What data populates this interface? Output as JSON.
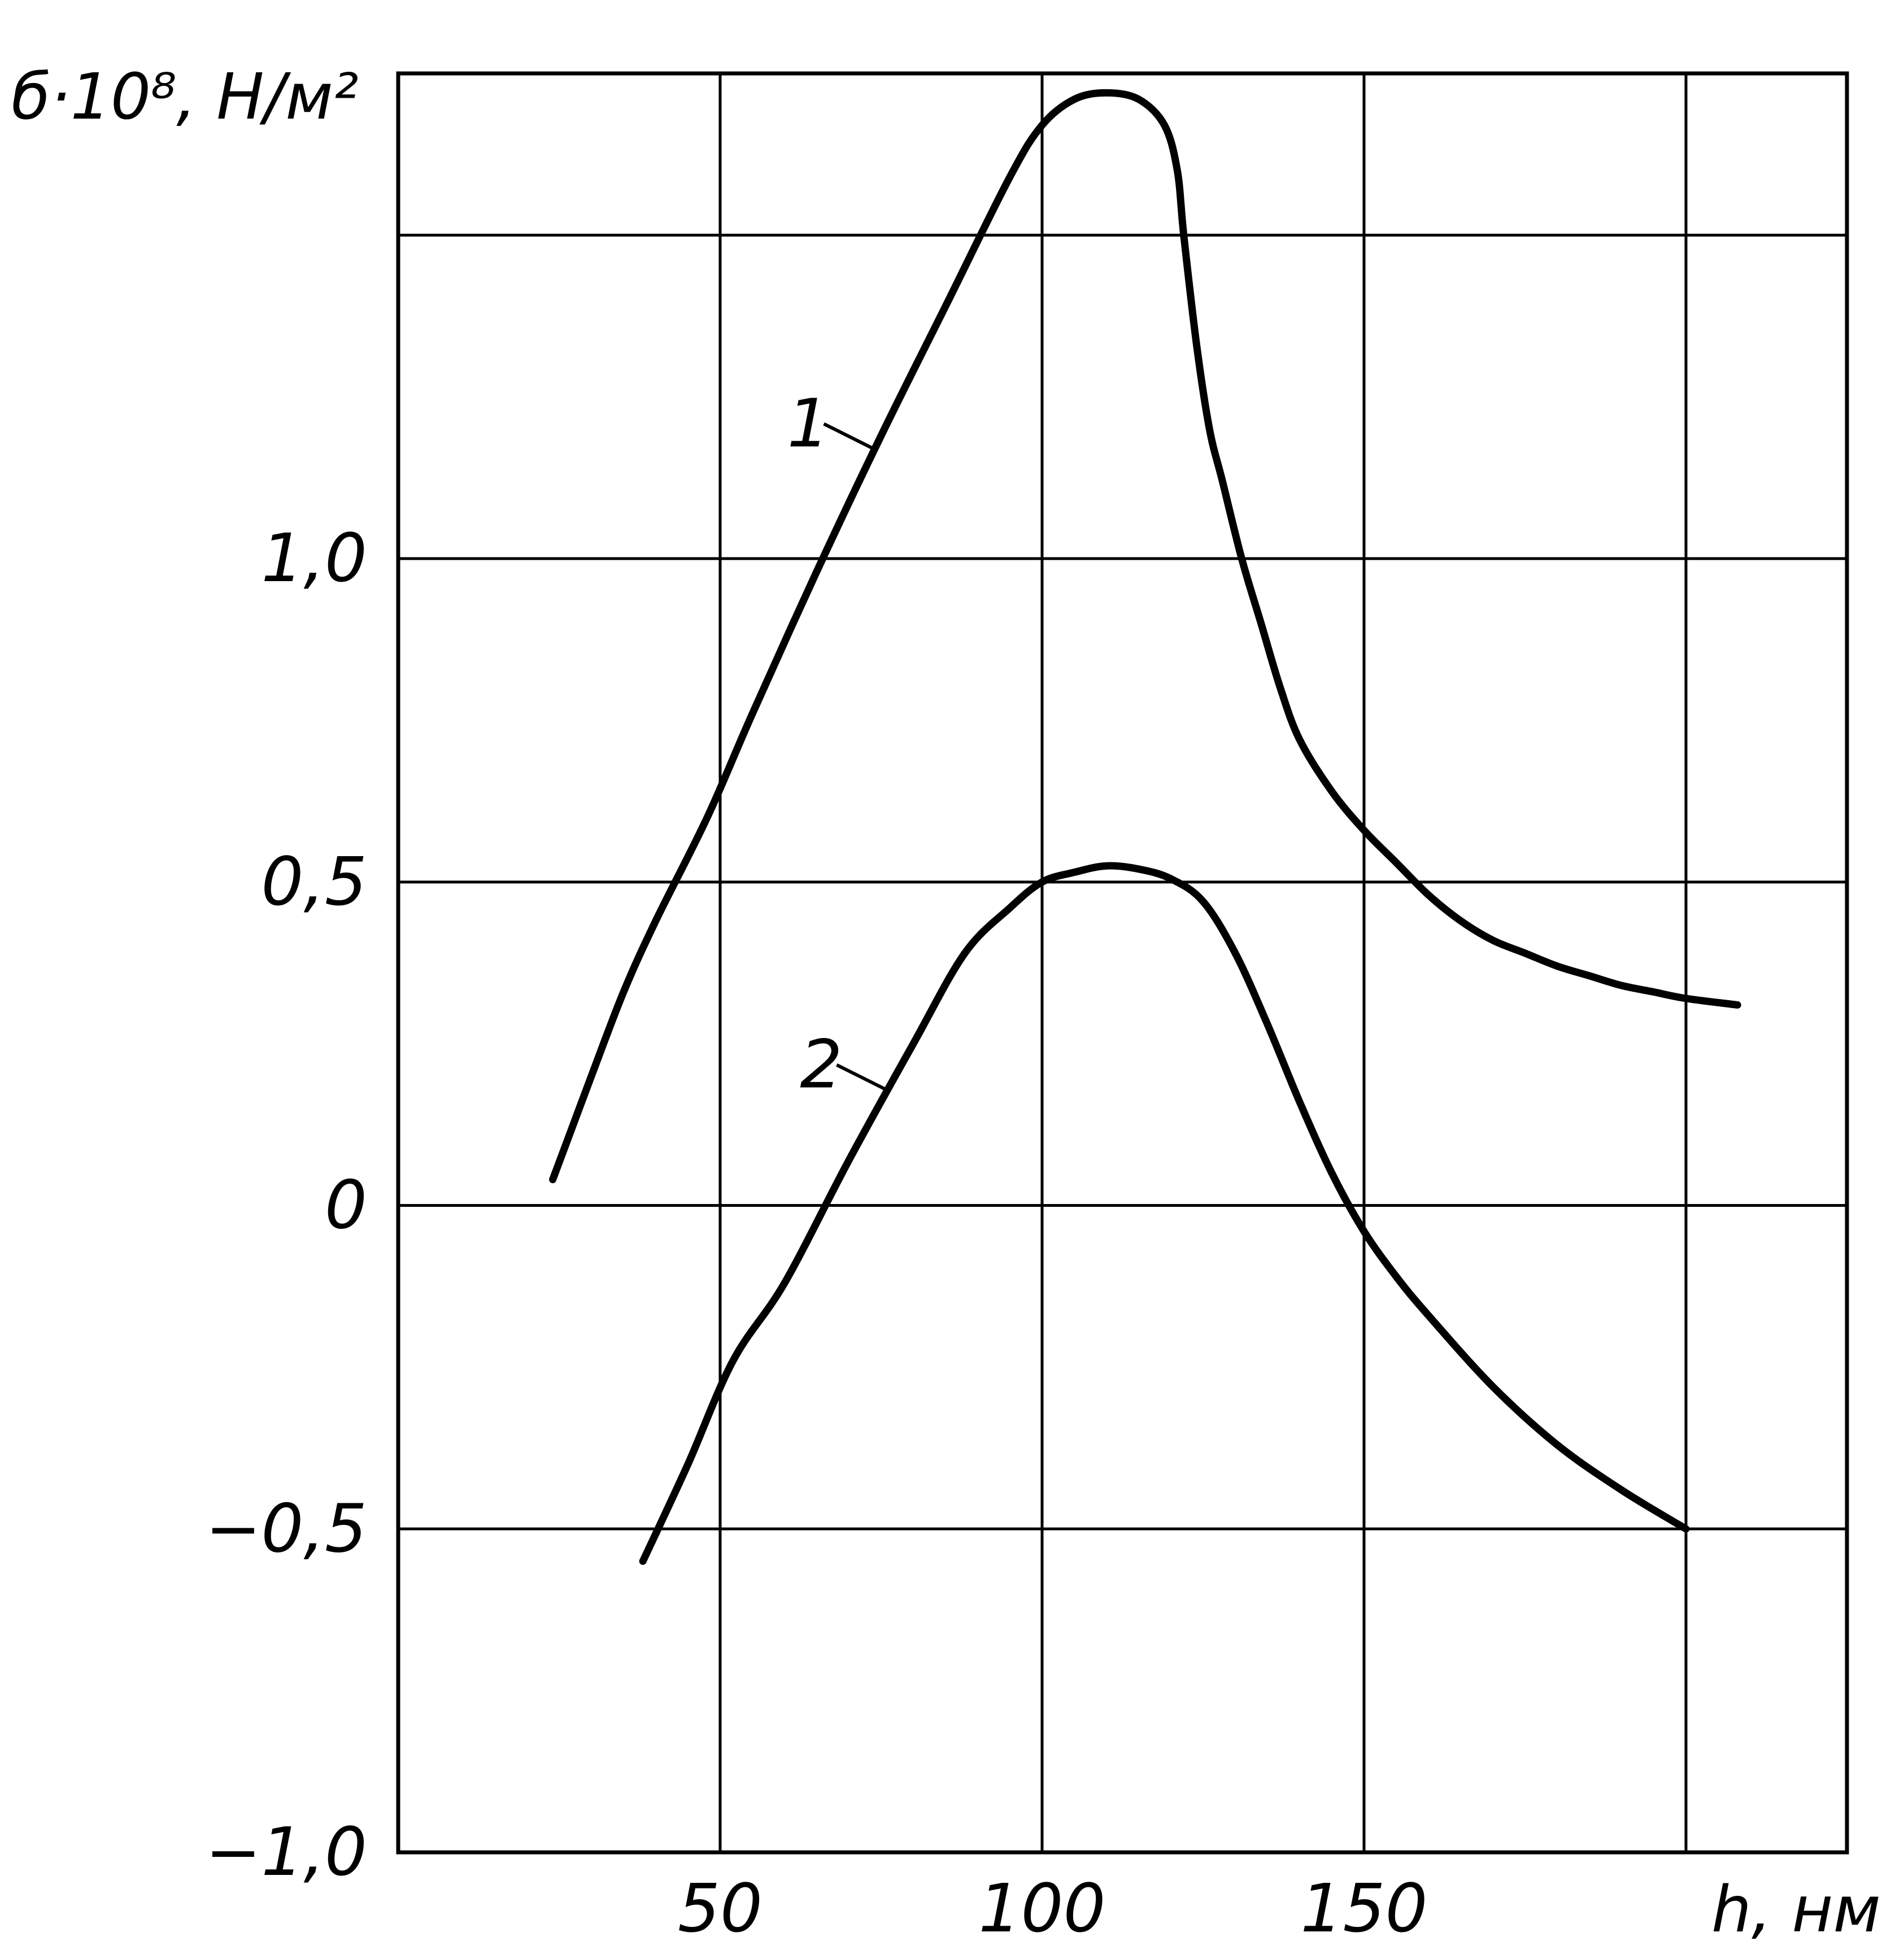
{
  "chart_data": {
    "type": "line",
    "ylabel": "б·10⁸, Н/м²",
    "xlabel": "h, нм",
    "xlim": [
      0,
      225
    ],
    "ylim": [
      -1.0,
      1.75
    ],
    "grid": true,
    "x_ticks": [
      {
        "value": 50,
        "label": "50"
      },
      {
        "value": 100,
        "label": "100"
      },
      {
        "value": 150,
        "label": "150"
      }
    ],
    "y_ticks": [
      {
        "value": -1.0,
        "label": "−1,0"
      },
      {
        "value": -0.5,
        "label": "−0,5"
      },
      {
        "value": 0,
        "label": "0"
      },
      {
        "value": 0.5,
        "label": "0,5"
      },
      {
        "value": 1.0,
        "label": "1,0"
      }
    ],
    "x_grid": [
      50,
      100,
      150,
      200,
      225
    ],
    "y_grid": [
      -0.5,
      0,
      0.5,
      1.0,
      1.5,
      1.75
    ],
    "series": [
      {
        "name": "1",
        "x": [
          24,
          27,
          30,
          35,
          40,
          48,
          55,
          65,
          75,
          85,
          95,
          100,
          105,
          110,
          115,
          119,
          121,
          122,
          124,
          126,
          128,
          131,
          134,
          137,
          140,
          145,
          150,
          155,
          160,
          165,
          170,
          175,
          180,
          185,
          190,
          195,
          200,
          208
        ],
        "y": [
          0.04,
          0.12,
          0.2,
          0.33,
          0.44,
          0.6,
          0.76,
          0.98,
          1.19,
          1.39,
          1.59,
          1.67,
          1.71,
          1.72,
          1.71,
          1.67,
          1.6,
          1.5,
          1.33,
          1.2,
          1.12,
          1.0,
          0.9,
          0.8,
          0.72,
          0.64,
          0.58,
          0.53,
          0.48,
          0.44,
          0.41,
          0.39,
          0.37,
          0.355,
          0.34,
          0.33,
          0.32,
          0.31
        ]
      },
      {
        "name": "2",
        "x": [
          38,
          45,
          52,
          60,
          70,
          80,
          88,
          95,
          100,
          105,
          110,
          115,
          120,
          125,
          130,
          135,
          140,
          145,
          150,
          155,
          160,
          170,
          180,
          190,
          200
        ],
        "y": [
          -0.55,
          -0.4,
          -0.24,
          -0.12,
          0.07,
          0.25,
          0.39,
          0.46,
          0.5,
          0.515,
          0.525,
          0.52,
          0.505,
          0.47,
          0.39,
          0.28,
          0.16,
          0.05,
          -0.04,
          -0.11,
          -0.17,
          -0.28,
          -0.37,
          -0.44,
          -0.5
        ]
      }
    ]
  }
}
